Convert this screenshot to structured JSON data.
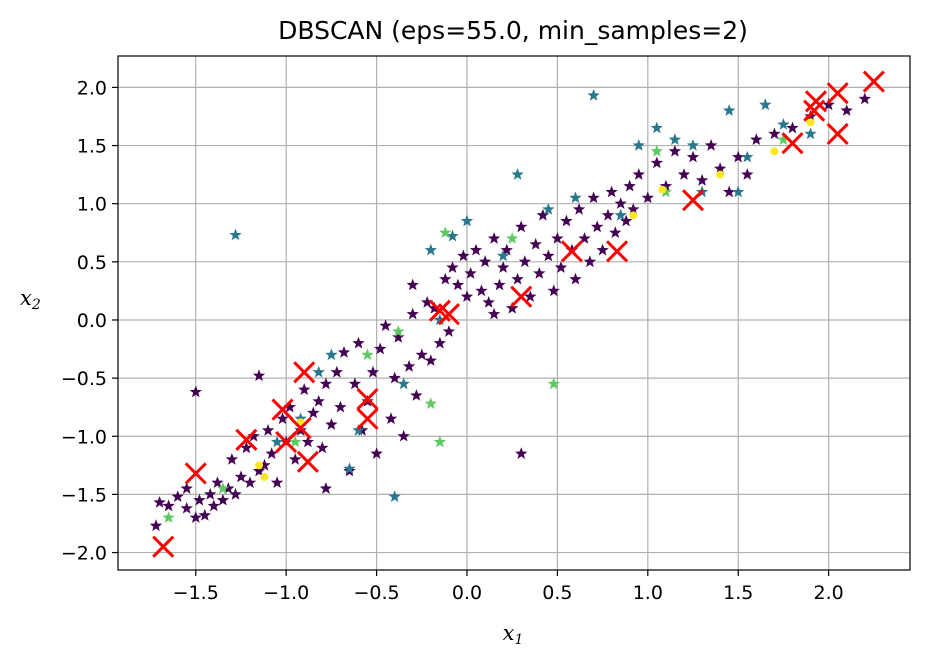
{
  "chart_data": {
    "type": "scatter",
    "title": "DBSCAN (eps=55.0, min_samples=2)",
    "xlabel": "x₁",
    "ylabel": "x₂",
    "xlim": [
      -1.93,
      2.45
    ],
    "ylim": [
      -2.15,
      2.27
    ],
    "x_ticks": [
      -1.5,
      -1.0,
      -0.5,
      0.0,
      0.5,
      1.0,
      1.5,
      2.0
    ],
    "y_ticks": [
      -2.0,
      -1.5,
      -1.0,
      -0.5,
      0.0,
      0.5,
      1.0,
      1.5,
      2.0
    ],
    "x_tick_labels": [
      "−1.5",
      "−1.0",
      "−0.5",
      "0.0",
      "0.5",
      "1.0",
      "1.5",
      "2.0"
    ],
    "y_tick_labels": [
      "−2.0",
      "−1.5",
      "−1.0",
      "−0.5",
      "0.0",
      "0.5",
      "1.0",
      "1.5",
      "2.0"
    ],
    "grid": true,
    "colors": {
      "cluster_main": "#440154",
      "cluster_teal": "#2a788e",
      "cluster_green": "#5ec962",
      "cluster_yellow": "#fde725",
      "anomaly": "#ff0000",
      "grid": "#b0b0b0",
      "axis": "#000000"
    },
    "series": [
      {
        "marker": "star",
        "color": "#440154",
        "points": [
          [
            -1.72,
            -1.77
          ],
          [
            -1.7,
            -1.57
          ],
          [
            -1.65,
            -1.6
          ],
          [
            -1.6,
            -1.52
          ],
          [
            -1.55,
            -1.62
          ],
          [
            -1.55,
            -1.45
          ],
          [
            -1.5,
            -1.7
          ],
          [
            -1.48,
            -1.55
          ],
          [
            -1.45,
            -1.68
          ],
          [
            -1.42,
            -1.5
          ],
          [
            -1.4,
            -1.6
          ],
          [
            -1.38,
            -1.4
          ],
          [
            -1.35,
            -1.55
          ],
          [
            -1.32,
            -1.45
          ],
          [
            -1.3,
            -1.2
          ],
          [
            -1.28,
            -1.5
          ],
          [
            -1.25,
            -1.35
          ],
          [
            -1.22,
            -1.1
          ],
          [
            -1.2,
            -1.4
          ],
          [
            -1.18,
            -1.0
          ],
          [
            -1.15,
            -1.3
          ],
          [
            -1.12,
            -1.25
          ],
          [
            -1.1,
            -0.95
          ],
          [
            -1.08,
            -1.15
          ],
          [
            -1.05,
            -1.4
          ],
          [
            -1.02,
            -0.85
          ],
          [
            -1.0,
            -1.05
          ],
          [
            -0.98,
            -0.75
          ],
          [
            -0.95,
            -1.2
          ],
          [
            -0.92,
            -0.95
          ],
          [
            -0.9,
            -0.6
          ],
          [
            -0.88,
            -1.05
          ],
          [
            -0.85,
            -0.8
          ],
          [
            -0.82,
            -0.7
          ],
          [
            -0.8,
            -1.1
          ],
          [
            -0.78,
            -0.55
          ],
          [
            -0.75,
            -0.9
          ],
          [
            -0.72,
            -0.45
          ],
          [
            -0.7,
            -0.75
          ],
          [
            -0.68,
            -0.28
          ],
          [
            -0.65,
            -1.3
          ],
          [
            -0.62,
            -0.55
          ],
          [
            -0.6,
            -0.2
          ],
          [
            -0.58,
            -0.95
          ],
          [
            -0.55,
            -0.7
          ],
          [
            -0.52,
            -0.45
          ],
          [
            -0.5,
            -1.15
          ],
          [
            -0.48,
            -0.25
          ],
          [
            -0.45,
            -0.05
          ],
          [
            -0.42,
            -0.85
          ],
          [
            -0.4,
            -0.5
          ],
          [
            -0.38,
            -0.15
          ],
          [
            -0.35,
            -1.0
          ],
          [
            -0.32,
            -0.4
          ],
          [
            -0.3,
            0.05
          ],
          [
            -0.28,
            -0.65
          ],
          [
            -0.25,
            -0.3
          ],
          [
            -0.22,
            0.15
          ],
          [
            -0.2,
            -0.35
          ],
          [
            -0.18,
            0.1
          ],
          [
            -0.15,
            -0.2
          ],
          [
            -0.12,
            0.35
          ],
          [
            -0.1,
            -0.1
          ],
          [
            -0.08,
            0.45
          ],
          [
            -0.05,
            0.3
          ],
          [
            -0.02,
            0.55
          ],
          [
            0.0,
            0.2
          ],
          [
            0.02,
            0.4
          ],
          [
            0.05,
            0.6
          ],
          [
            0.08,
            0.25
          ],
          [
            0.1,
            0.5
          ],
          [
            0.12,
            0.15
          ],
          [
            0.15,
            0.7
          ],
          [
            0.18,
            0.3
          ],
          [
            0.2,
            0.45
          ],
          [
            0.22,
            0.6
          ],
          [
            0.25,
            0.1
          ],
          [
            0.28,
            0.35
          ],
          [
            0.3,
            0.8
          ],
          [
            0.32,
            0.5
          ],
          [
            0.35,
            0.2
          ],
          [
            0.38,
            0.65
          ],
          [
            0.4,
            0.4
          ],
          [
            0.42,
            0.9
          ],
          [
            0.45,
            0.55
          ],
          [
            0.48,
            0.25
          ],
          [
            0.5,
            0.7
          ],
          [
            0.52,
            0.45
          ],
          [
            0.55,
            0.85
          ],
          [
            0.58,
            0.6
          ],
          [
            0.6,
            0.35
          ],
          [
            0.62,
            0.95
          ],
          [
            0.65,
            0.7
          ],
          [
            0.68,
            0.5
          ],
          [
            0.7,
            1.05
          ],
          [
            0.72,
            0.8
          ],
          [
            0.75,
            0.6
          ],
          [
            0.78,
            0.9
          ],
          [
            0.8,
            1.1
          ],
          [
            0.82,
            0.75
          ],
          [
            0.85,
            1.0
          ],
          [
            0.88,
            0.85
          ],
          [
            0.9,
            1.15
          ],
          [
            0.92,
            0.95
          ],
          [
            0.95,
            1.25
          ],
          [
            1.0,
            1.05
          ],
          [
            1.05,
            1.35
          ],
          [
            1.1,
            1.15
          ],
          [
            1.15,
            1.45
          ],
          [
            1.2,
            1.25
          ],
          [
            1.25,
            1.4
          ],
          [
            1.3,
            1.2
          ],
          [
            1.35,
            1.5
          ],
          [
            1.4,
            1.3
          ],
          [
            1.45,
            1.1
          ],
          [
            1.5,
            1.4
          ],
          [
            1.55,
            1.25
          ],
          [
            1.6,
            1.55
          ],
          [
            1.7,
            1.6
          ],
          [
            1.8,
            1.65
          ],
          [
            1.9,
            1.75
          ],
          [
            2.0,
            1.85
          ],
          [
            2.1,
            1.8
          ],
          [
            2.2,
            1.9
          ],
          [
            0.3,
            -1.15
          ],
          [
            -0.78,
            -1.45
          ],
          [
            -1.5,
            -0.62
          ],
          [
            -1.15,
            -0.48
          ],
          [
            -0.3,
            0.3
          ],
          [
            0.15,
            0.05
          ]
        ]
      },
      {
        "marker": "star",
        "color": "#2a788e",
        "points": [
          [
            -1.28,
            0.73
          ],
          [
            -0.4,
            -1.52
          ],
          [
            -0.65,
            -1.28
          ],
          [
            -0.82,
            -0.45
          ],
          [
            -0.75,
            -0.3
          ],
          [
            -0.6,
            -0.95
          ],
          [
            -0.35,
            -0.55
          ],
          [
            -0.2,
            0.6
          ],
          [
            -0.15,
            0.0
          ],
          [
            -0.08,
            0.72
          ],
          [
            0.0,
            0.85
          ],
          [
            0.2,
            0.55
          ],
          [
            0.28,
            1.25
          ],
          [
            0.45,
            0.95
          ],
          [
            0.6,
            1.05
          ],
          [
            0.7,
            1.93
          ],
          [
            0.85,
            0.9
          ],
          [
            0.95,
            1.5
          ],
          [
            1.05,
            1.65
          ],
          [
            1.15,
            1.55
          ],
          [
            1.25,
            1.5
          ],
          [
            1.3,
            1.1
          ],
          [
            1.45,
            1.8
          ],
          [
            1.5,
            1.1
          ],
          [
            1.55,
            1.4
          ],
          [
            1.65,
            1.85
          ],
          [
            1.75,
            1.68
          ],
          [
            1.9,
            1.6
          ],
          [
            -1.05,
            -1.05
          ],
          [
            -0.92,
            -0.85
          ]
        ]
      },
      {
        "marker": "star",
        "color": "#5ec962",
        "points": [
          [
            -0.95,
            -1.05
          ],
          [
            -0.55,
            -0.3
          ],
          [
            -0.38,
            -0.1
          ],
          [
            -0.2,
            -0.72
          ],
          [
            -0.12,
            0.75
          ],
          [
            0.25,
            0.7
          ],
          [
            0.48,
            -0.55
          ],
          [
            -1.35,
            -1.45
          ],
          [
            -1.65,
            -1.7
          ],
          [
            -0.15,
            -1.05
          ],
          [
            1.05,
            1.45
          ],
          [
            1.1,
            1.1
          ],
          [
            1.75,
            1.55
          ]
        ]
      },
      {
        "marker": "circle",
        "color": "#fde725",
        "points": [
          [
            -1.15,
            -1.25
          ],
          [
            -1.12,
            -1.35
          ],
          [
            1.08,
            1.12
          ],
          [
            1.4,
            1.25
          ],
          [
            1.7,
            1.45
          ],
          [
            1.9,
            1.7
          ],
          [
            -0.92,
            -0.88
          ],
          [
            0.92,
            0.9
          ]
        ]
      },
      {
        "marker": "x",
        "color": "#ff0000",
        "name_role": "anomalies",
        "points": [
          [
            -1.68,
            -1.95
          ],
          [
            -1.5,
            -1.32
          ],
          [
            -1.22,
            -1.03
          ],
          [
            -1.02,
            -0.77
          ],
          [
            -1.0,
            -1.05
          ],
          [
            -0.92,
            -0.93
          ],
          [
            -0.88,
            -1.22
          ],
          [
            -0.9,
            -0.45
          ],
          [
            -0.55,
            -0.68
          ],
          [
            -0.55,
            -0.85
          ],
          [
            -0.15,
            0.08
          ],
          [
            -0.1,
            0.05
          ],
          [
            0.3,
            0.2
          ],
          [
            0.58,
            0.59
          ],
          [
            0.83,
            0.59
          ],
          [
            1.25,
            1.03
          ],
          [
            1.8,
            1.52
          ],
          [
            1.93,
            1.88
          ],
          [
            1.92,
            1.8
          ],
          [
            2.05,
            1.95
          ],
          [
            2.05,
            1.6
          ],
          [
            2.25,
            2.05
          ]
        ]
      }
    ]
  }
}
